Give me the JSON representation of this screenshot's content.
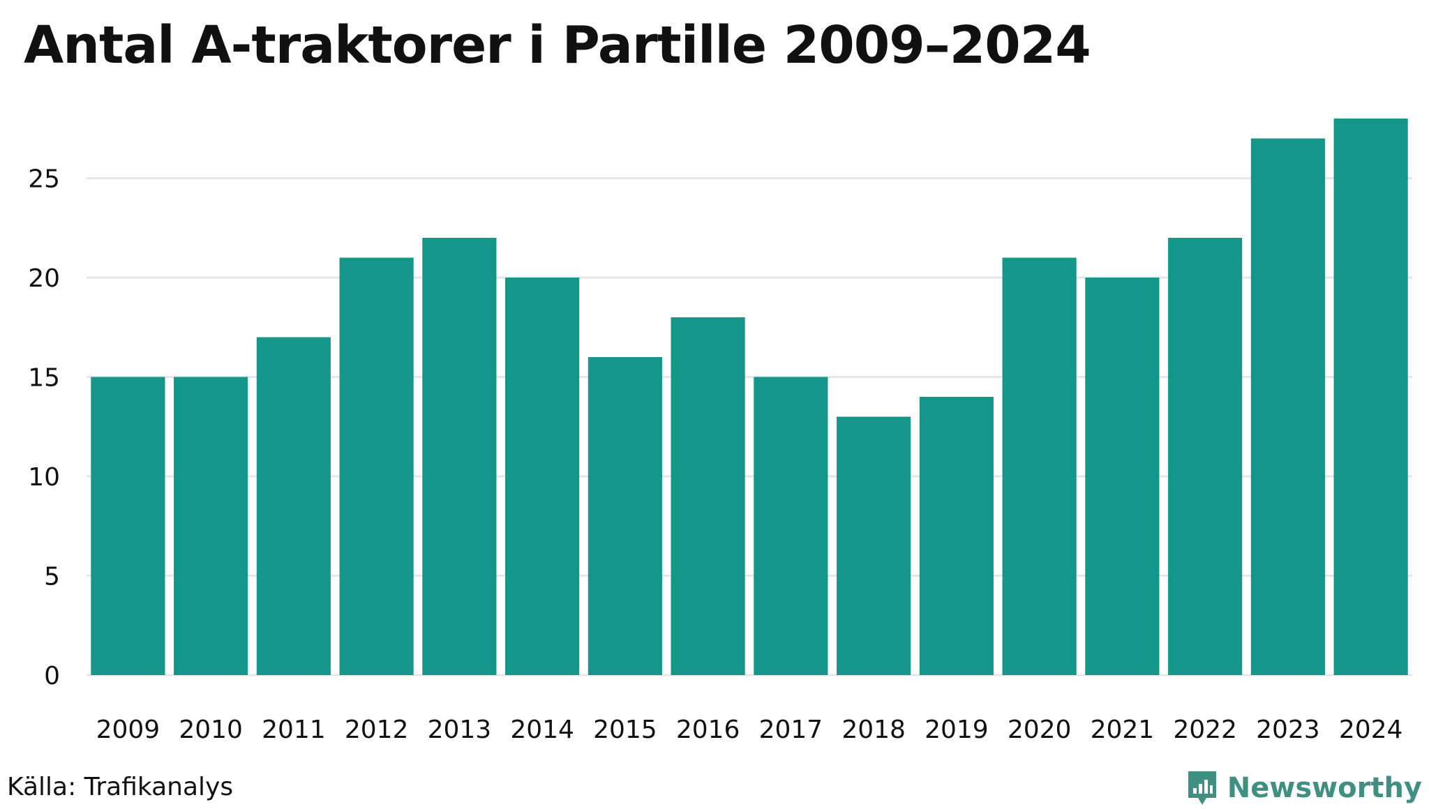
{
  "title": "Antal A-traktorer i Partille 2009–2024",
  "source": "Källa: Trafikanalys",
  "brand": {
    "name": "Newsworthy",
    "icon": "newsworthy-chart-icon",
    "color": "#3f8f83"
  },
  "chart_data": {
    "type": "bar",
    "categories": [
      "2009",
      "2010",
      "2011",
      "2012",
      "2013",
      "2014",
      "2015",
      "2016",
      "2017",
      "2018",
      "2019",
      "2020",
      "2021",
      "2022",
      "2023",
      "2024"
    ],
    "values": [
      15,
      15,
      17,
      21,
      22,
      20,
      16,
      18,
      15,
      13,
      14,
      21,
      20,
      22,
      27,
      28
    ],
    "title": "Antal A-traktorer i Partille 2009–2024",
    "xlabel": "",
    "ylabel": "",
    "ylim": [
      0,
      28
    ],
    "yticks": [
      0,
      5,
      10,
      15,
      20,
      25
    ],
    "grid": true,
    "bar_color": "#14968a",
    "grid_color": "#e6e6e6"
  }
}
